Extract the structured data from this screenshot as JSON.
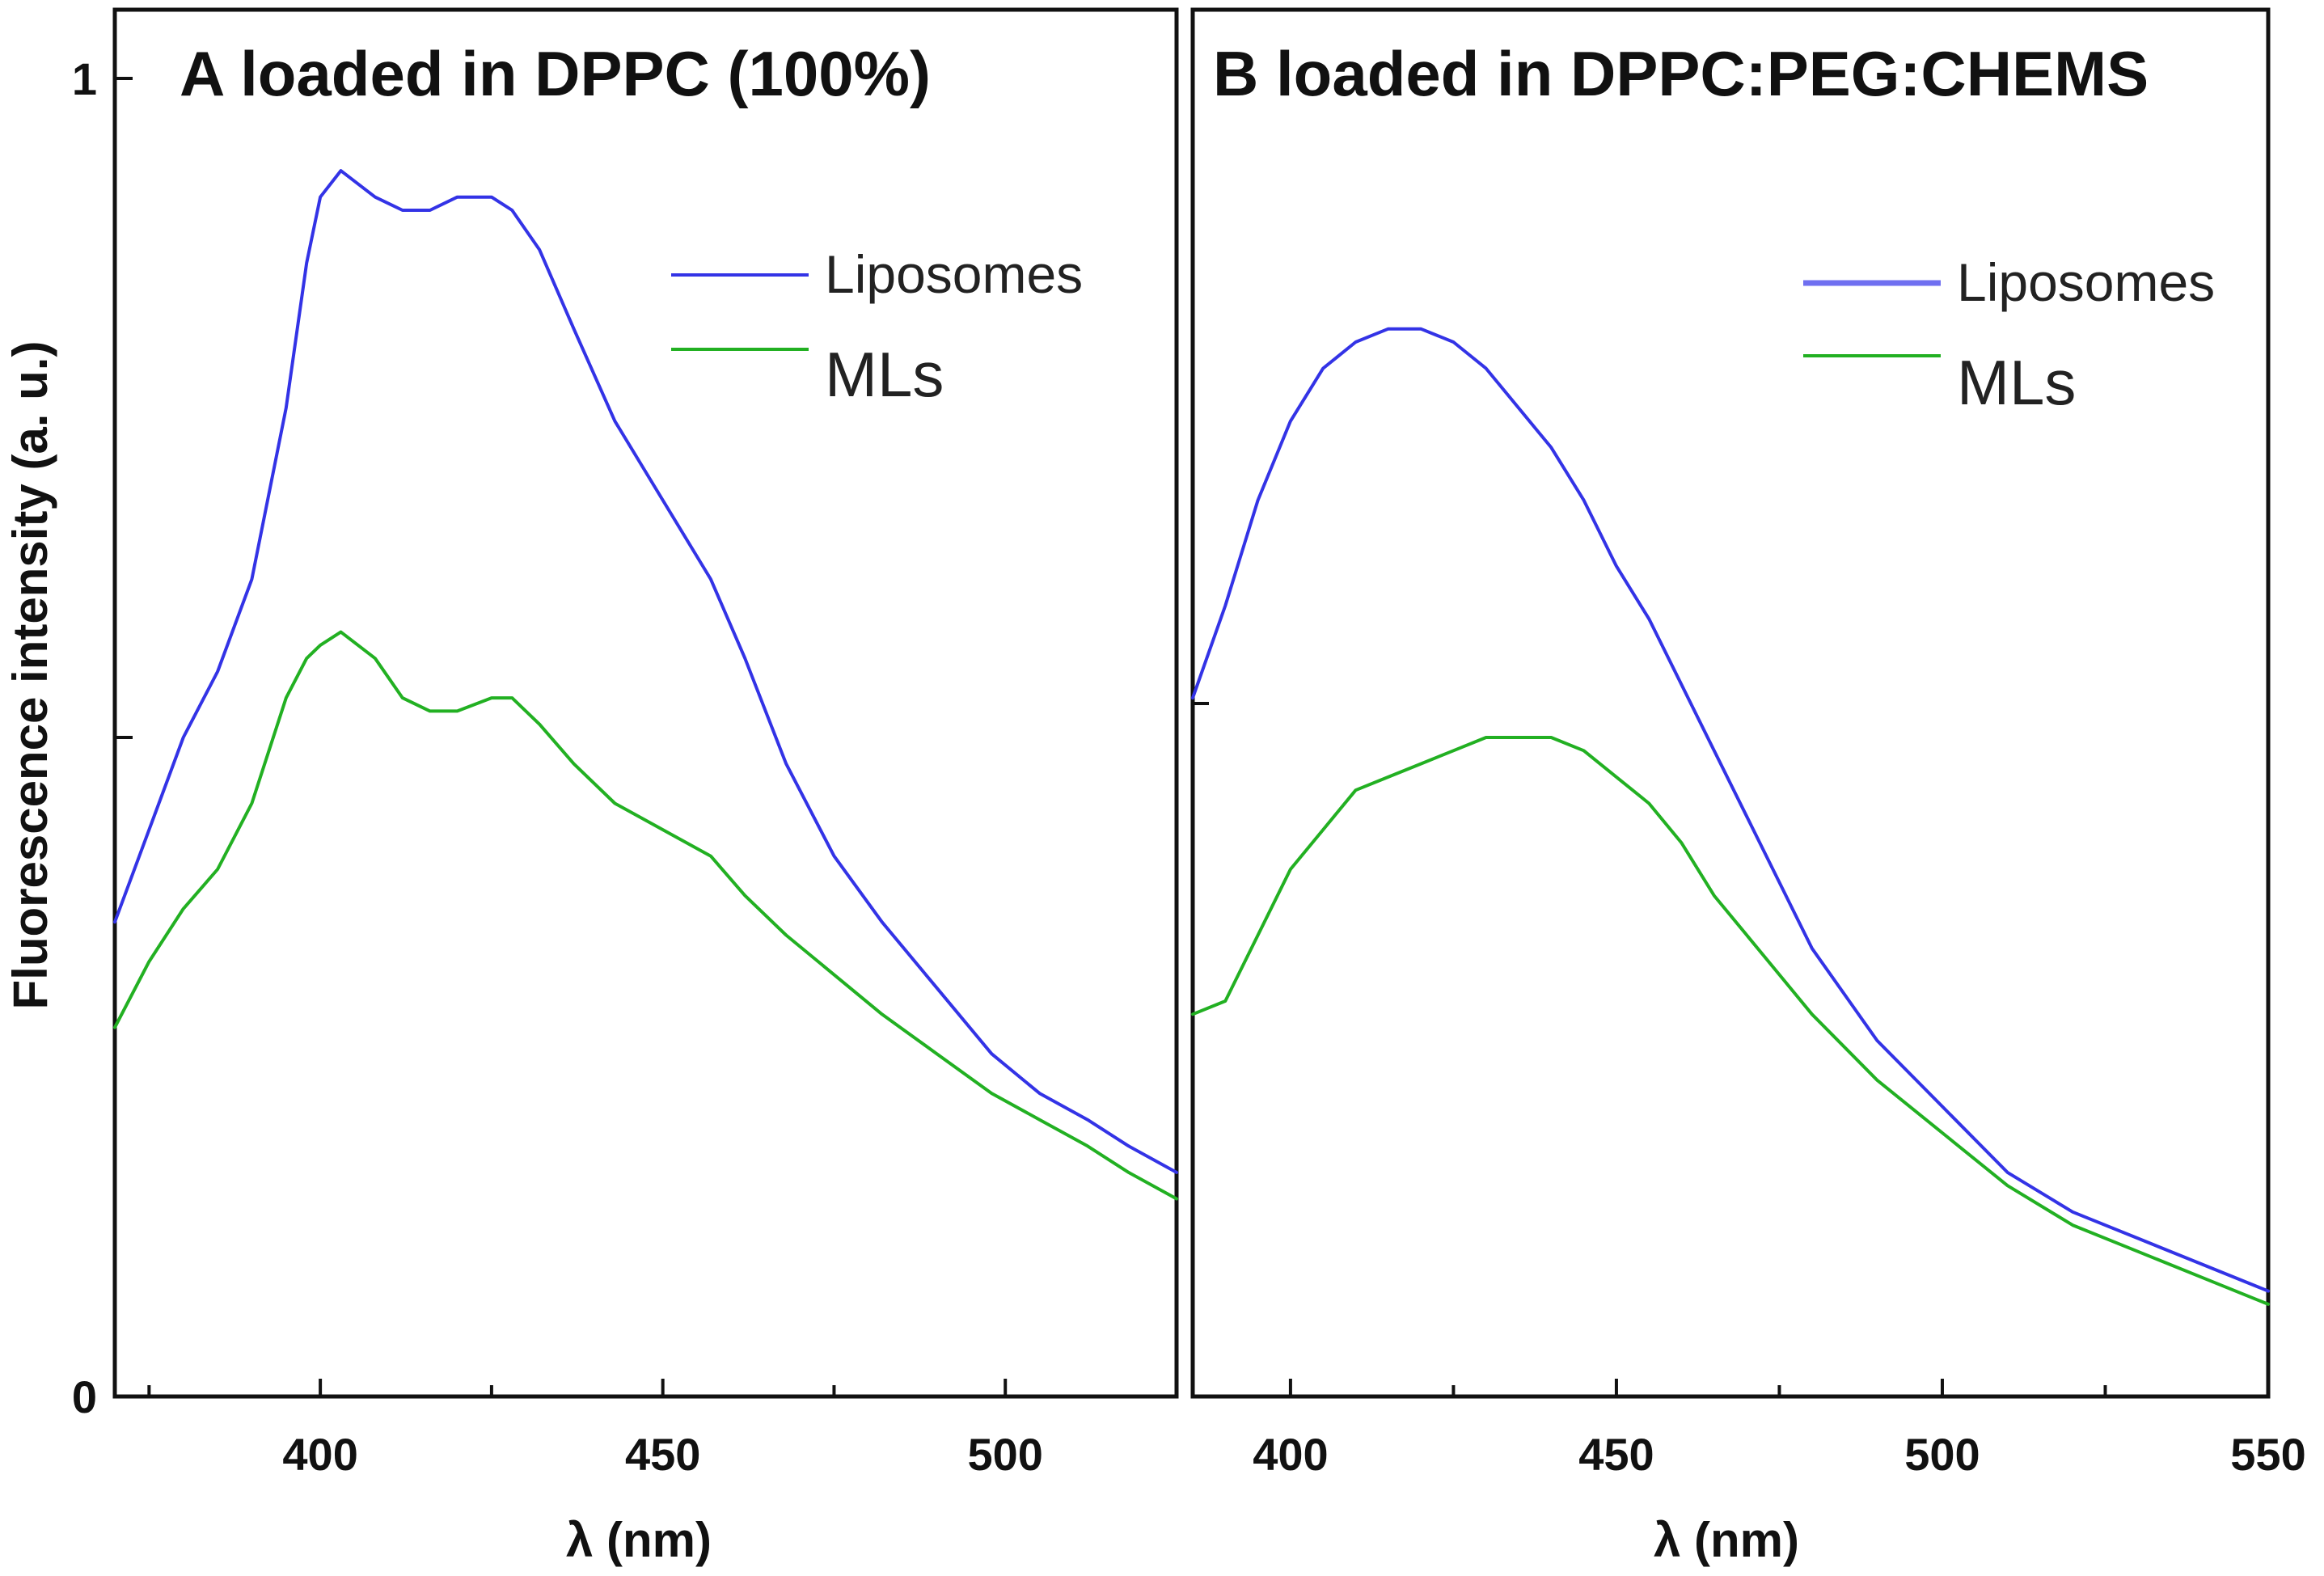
{
  "chart_data": [
    {
      "type": "line",
      "title": "A loaded in DPPC (100%)",
      "xlabel": "λ (nm)",
      "ylabel": "Fluorescence intensity (a. u.)",
      "xlim": [
        370,
        525
      ],
      "ylim": [
        0,
        1
      ],
      "xticks": [
        400,
        450,
        500
      ],
      "yticks": [
        0,
        1
      ],
      "grid": false,
      "legend_position": "top-right",
      "series": [
        {
          "name": "Liposomes",
          "color": "#3333e6",
          "x": [
            370,
            375,
            380,
            385,
            390,
            395,
            398,
            400,
            403,
            408,
            412,
            416,
            420,
            425,
            428,
            432,
            437,
            443,
            450,
            457,
            462,
            468,
            475,
            482,
            490,
            498,
            505,
            512,
            518,
            525
          ],
          "y": [
            0.36,
            0.43,
            0.5,
            0.55,
            0.62,
            0.75,
            0.86,
            0.91,
            0.93,
            0.91,
            0.9,
            0.9,
            0.91,
            0.91,
            0.9,
            0.87,
            0.81,
            0.74,
            0.68,
            0.62,
            0.56,
            0.48,
            0.41,
            0.36,
            0.31,
            0.26,
            0.23,
            0.21,
            0.19,
            0.17
          ]
        },
        {
          "name": "MLs",
          "color": "#22b022",
          "x": [
            370,
            375,
            380,
            385,
            390,
            395,
            398,
            400,
            403,
            408,
            412,
            416,
            420,
            425,
            428,
            432,
            437,
            443,
            450,
            457,
            462,
            468,
            475,
            482,
            490,
            498,
            505,
            512,
            518,
            525
          ],
          "y": [
            0.28,
            0.33,
            0.37,
            0.4,
            0.45,
            0.53,
            0.56,
            0.57,
            0.58,
            0.56,
            0.53,
            0.52,
            0.52,
            0.53,
            0.53,
            0.51,
            0.48,
            0.45,
            0.43,
            0.41,
            0.38,
            0.35,
            0.32,
            0.29,
            0.26,
            0.23,
            0.21,
            0.19,
            0.17,
            0.15
          ]
        }
      ]
    },
    {
      "type": "line",
      "title": "B loaded in DPPC:PEG:CHEMS",
      "xlabel": "λ (nm)",
      "ylabel": "",
      "xlim": [
        385,
        550
      ],
      "ylim": [
        0,
        1
      ],
      "xticks": [
        400,
        450,
        500,
        550
      ],
      "grid": false,
      "legend_position": "top-right",
      "series": [
        {
          "name": "Liposomes",
          "color": "#3333e6",
          "x": [
            385,
            390,
            395,
            400,
            405,
            410,
            415,
            420,
            425,
            430,
            435,
            440,
            445,
            450,
            455,
            460,
            465,
            470,
            475,
            480,
            490,
            500,
            510,
            520,
            530,
            540,
            550
          ],
          "y": [
            0.53,
            0.6,
            0.68,
            0.74,
            0.78,
            0.8,
            0.81,
            0.81,
            0.8,
            0.78,
            0.75,
            0.72,
            0.68,
            0.63,
            0.59,
            0.54,
            0.49,
            0.44,
            0.39,
            0.34,
            0.27,
            0.22,
            0.17,
            0.14,
            0.12,
            0.1,
            0.08
          ]
        },
        {
          "name": "MLs",
          "color": "#22b022",
          "x": [
            385,
            390,
            395,
            400,
            405,
            410,
            415,
            420,
            425,
            430,
            435,
            440,
            445,
            450,
            455,
            460,
            465,
            470,
            475,
            480,
            490,
            500,
            510,
            520,
            530,
            540,
            550
          ],
          "y": [
            0.29,
            0.3,
            0.35,
            0.4,
            0.43,
            0.46,
            0.47,
            0.48,
            0.49,
            0.5,
            0.5,
            0.5,
            0.49,
            0.47,
            0.45,
            0.42,
            0.38,
            0.35,
            0.32,
            0.29,
            0.24,
            0.2,
            0.16,
            0.13,
            0.11,
            0.09,
            0.07
          ]
        }
      ]
    }
  ]
}
